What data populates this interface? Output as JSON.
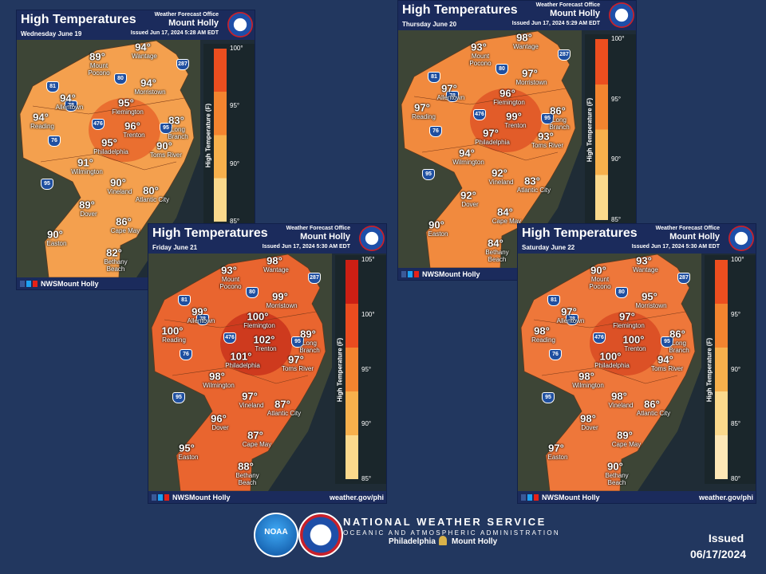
{
  "panels": [
    {
      "title": "High Temperatures",
      "office_label": "Weather Forecast Office",
      "office": "Mount Holly",
      "date": "Wednesday June 19",
      "issued": "Issued Jun 17, 2024 5:28 AM EDT",
      "cities": [
        {
          "temp": "94°",
          "name": "Wantage"
        },
        {
          "temp": "89°",
          "name": "Mount Pocono"
        },
        {
          "temp": "94°",
          "name": "Morristown"
        },
        {
          "temp": "94°",
          "name": "Allentown"
        },
        {
          "temp": "95°",
          "name": "Flemington"
        },
        {
          "temp": "94°",
          "name": "Reading"
        },
        {
          "temp": "96°",
          "name": "Trenton"
        },
        {
          "temp": "83°",
          "name": "Long Branch"
        },
        {
          "temp": "95°",
          "name": "Philadelphia"
        },
        {
          "temp": "90°",
          "name": "Toms River"
        },
        {
          "temp": "91°",
          "name": "Wilmington"
        },
        {
          "temp": "90°",
          "name": "Vineland"
        },
        {
          "temp": "80°",
          "name": "Atlantic City"
        },
        {
          "temp": "89°",
          "name": "Dover"
        },
        {
          "temp": "86°",
          "name": "Cape May"
        },
        {
          "temp": "90°",
          "name": "Easton"
        },
        {
          "temp": "82°",
          "name": "Bethany Beach"
        }
      ],
      "colorbar": {
        "label": "High Temperature (F)",
        "ticks": [
          "100°",
          "95°",
          "90°",
          "85°"
        ]
      },
      "footer": {
        "handle": "NWSMount Holly"
      }
    },
    {
      "title": "High Temperatures",
      "office_label": "Weather Forecast Office",
      "office": "Mount Holly",
      "date": "Thursday June 20",
      "issued": "Issued Jun 17, 2024 5:29 AM EDT",
      "cities": [
        {
          "temp": "98°",
          "name": "Wantage"
        },
        {
          "temp": "93°",
          "name": "Mount Pocono"
        },
        {
          "temp": "97°",
          "name": "Morristown"
        },
        {
          "temp": "97°",
          "name": "Allentown"
        },
        {
          "temp": "96°",
          "name": "Flemington"
        },
        {
          "temp": "97°",
          "name": "Reading"
        },
        {
          "temp": "99°",
          "name": "Trenton"
        },
        {
          "temp": "86°",
          "name": "Long Branch"
        },
        {
          "temp": "97°",
          "name": "Philadelphia"
        },
        {
          "temp": "93°",
          "name": "Toms River"
        },
        {
          "temp": "94°",
          "name": "Wilmington"
        },
        {
          "temp": "92°",
          "name": "Vineland"
        },
        {
          "temp": "83°",
          "name": "Atlantic City"
        },
        {
          "temp": "92°",
          "name": "Dover"
        },
        {
          "temp": "84°",
          "name": "Cape May"
        },
        {
          "temp": "90°",
          "name": "Easton"
        },
        {
          "temp": "84°",
          "name": "Bethany Beach"
        }
      ],
      "colorbar": {
        "label": "High Temperature (F)",
        "ticks": [
          "100°",
          "95°",
          "90°",
          "85°"
        ]
      },
      "footer": {
        "handle": "NWSMount Holly"
      }
    },
    {
      "title": "High Temperatures",
      "office_label": "Weather Forecast Office",
      "office": "Mount Holly",
      "date": "Friday June 21",
      "issued": "Issued Jun 17, 2024 5:30 AM EDT",
      "cities": [
        {
          "temp": "98°",
          "name": "Wantage"
        },
        {
          "temp": "93°",
          "name": "Mount Pocono"
        },
        {
          "temp": "99°",
          "name": "Morristown"
        },
        {
          "temp": "99°",
          "name": "Allentown"
        },
        {
          "temp": "100°",
          "name": "Flemington"
        },
        {
          "temp": "100°",
          "name": "Reading"
        },
        {
          "temp": "102°",
          "name": "Trenton"
        },
        {
          "temp": "89°",
          "name": "Long Branch"
        },
        {
          "temp": "101°",
          "name": "Philadelphia"
        },
        {
          "temp": "97°",
          "name": "Toms River"
        },
        {
          "temp": "98°",
          "name": "Wilmington"
        },
        {
          "temp": "97°",
          "name": "Vineland"
        },
        {
          "temp": "87°",
          "name": "Atlantic City"
        },
        {
          "temp": "96°",
          "name": "Dover"
        },
        {
          "temp": "87°",
          "name": "Cape May"
        },
        {
          "temp": "95°",
          "name": "Easton"
        },
        {
          "temp": "88°",
          "name": "Bethany Beach"
        }
      ],
      "colorbar": {
        "label": "High Temperature (F)",
        "ticks": [
          "105°",
          "100°",
          "95°",
          "90°",
          "85°"
        ]
      },
      "footer": {
        "handle": "NWSMount Holly",
        "url": "weather.gov/phi"
      }
    },
    {
      "title": "High Temperatures",
      "office_label": "Weather Forecast Office",
      "office": "Mount Holly",
      "date": "Saturday June 22",
      "issued": "Issued Jun 17, 2024 5:30 AM EDT",
      "cities": [
        {
          "temp": "93°",
          "name": "Wantage"
        },
        {
          "temp": "90°",
          "name": "Mount Pocono"
        },
        {
          "temp": "95°",
          "name": "Morristown"
        },
        {
          "temp": "97°",
          "name": "Allentown"
        },
        {
          "temp": "97°",
          "name": "Flemington"
        },
        {
          "temp": "98°",
          "name": "Reading"
        },
        {
          "temp": "100°",
          "name": "Trenton"
        },
        {
          "temp": "86°",
          "name": "Long Branch"
        },
        {
          "temp": "100°",
          "name": "Philadelphia"
        },
        {
          "temp": "94°",
          "name": "Toms River"
        },
        {
          "temp": "98°",
          "name": "Wilmington"
        },
        {
          "temp": "98°",
          "name": "Vineland"
        },
        {
          "temp": "86°",
          "name": "Atlantic City"
        },
        {
          "temp": "98°",
          "name": "Dover"
        },
        {
          "temp": "89°",
          "name": "Cape May"
        },
        {
          "temp": "97°",
          "name": "Easton"
        },
        {
          "temp": "90°",
          "name": "Bethany Beach"
        }
      ],
      "colorbar": {
        "label": "High Temperature (F)",
        "ticks": [
          "100°",
          "95°",
          "90°",
          "85°",
          "80°"
        ]
      },
      "footer": {
        "handle": "NWSMount Holly",
        "url": "weather.gov/phi"
      }
    }
  ],
  "highways": [
    "81",
    "80",
    "287",
    "78",
    "476",
    "95",
    "76",
    "95"
  ],
  "branding": {
    "noaa": "NOAA",
    "agency": "NATIONAL WEATHER SERVICE",
    "parent": "OCEANIC AND ATMOSPHERIC ADMINISTRATION",
    "city1": "Philadelphia",
    "city2": "Mount Holly"
  },
  "issued": {
    "label": "Issued",
    "date": "06/17/2024"
  }
}
